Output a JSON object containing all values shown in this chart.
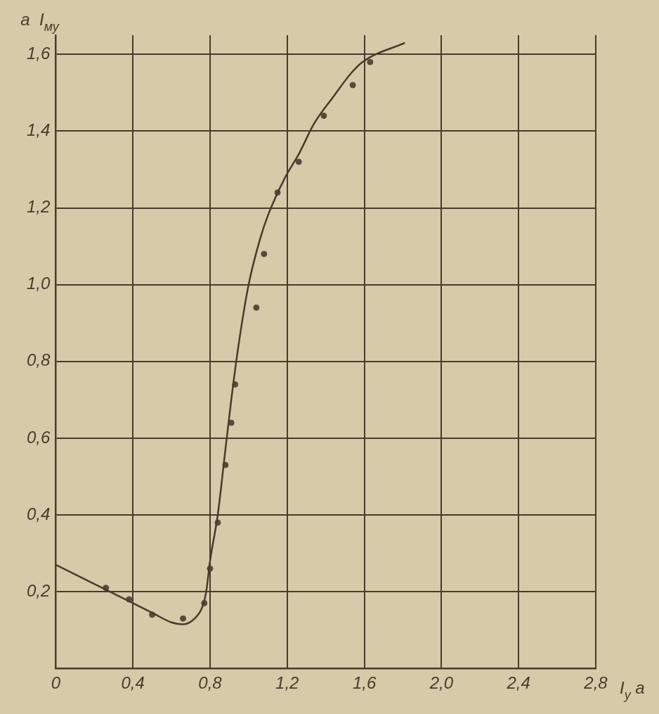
{
  "chart_data": {
    "type": "scatter",
    "xlabel": "I$_{y}$ a",
    "ylabel": "a  I$_{му}$",
    "xlim": [
      0,
      2.8
    ],
    "ylim": [
      0,
      1.65
    ],
    "xticks": [
      {
        "value": 0,
        "label": "0"
      },
      {
        "value": 0.4,
        "label": "0,4"
      },
      {
        "value": 0.8,
        "label": "0,8"
      },
      {
        "value": 1.2,
        "label": "1,2"
      },
      {
        "value": 1.6,
        "label": "1,6"
      },
      {
        "value": 2.0,
        "label": "2,0"
      },
      {
        "value": 2.4,
        "label": "2,4"
      },
      {
        "value": 2.8,
        "label": "2,8"
      }
    ],
    "yticks": [
      {
        "value": 0,
        "label": null
      },
      {
        "value": 0.2,
        "label": "0,2"
      },
      {
        "value": 0.4,
        "label": "0,4"
      },
      {
        "value": 0.6,
        "label": "0,6"
      },
      {
        "value": 0.8,
        "label": "0,8"
      },
      {
        "value": 1.0,
        "label": "1,0"
      },
      {
        "value": 1.2,
        "label": "1,2"
      },
      {
        "value": 1.4,
        "label": "1,4"
      },
      {
        "value": 1.6,
        "label": "1,6"
      }
    ],
    "grid": true,
    "marker": "circle",
    "series": [
      {
        "type": "line",
        "marker": "none",
        "color": "#4a3a2e",
        "x": [
          0,
          0.2,
          0.4,
          0.5,
          0.6,
          0.66,
          0.72,
          0.76,
          0.78,
          0.8,
          0.84,
          0.875,
          0.91,
          0.95,
          1.0,
          1.06,
          1.1,
          1.19,
          1.26,
          1.34,
          1.44,
          1.53,
          1.59,
          1.81
        ],
        "values": [
          0.27,
          0.22,
          0.17,
          0.145,
          0.12,
          0.115,
          0.13,
          0.16,
          0.2,
          0.28,
          0.4,
          0.55,
          0.7,
          0.85,
          1.0,
          1.12,
          1.18,
          1.28,
          1.34,
          1.42,
          1.49,
          1.55,
          1.58,
          1.63
        ]
      },
      {
        "color": "#5a4a3e",
        "x": [
          0.26,
          0.38,
          0.5,
          0.66,
          0.77,
          0.8,
          0.84,
          0.88,
          0.91,
          0.93,
          1.04,
          1.08,
          1.15,
          1.26,
          1.39,
          1.54,
          1.63
        ],
        "values": [
          0.21,
          0.18,
          0.14,
          0.13,
          0.17,
          0.26,
          0.38,
          0.53,
          0.64,
          0.74,
          0.94,
          1.08,
          1.24,
          1.32,
          1.44,
          1.52,
          1.58
        ]
      }
    ]
  }
}
